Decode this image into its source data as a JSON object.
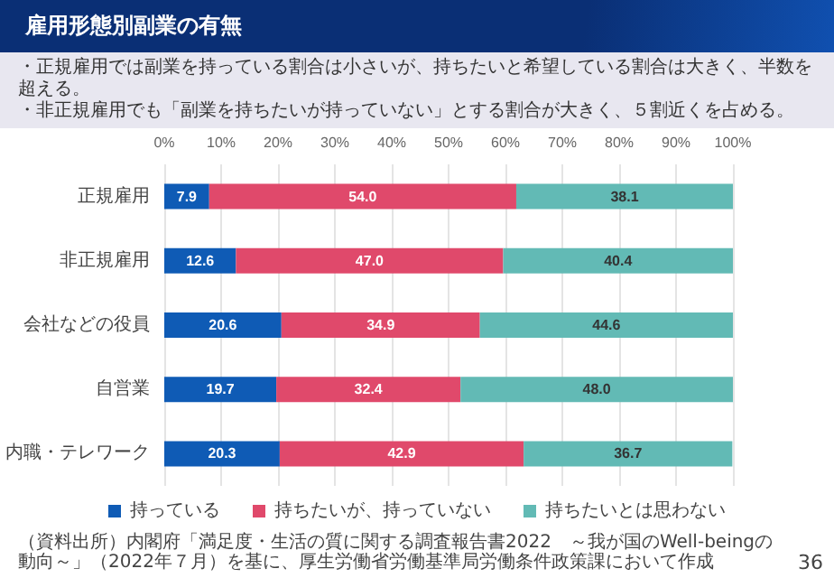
{
  "chart_data": {
    "type": "bar",
    "orientation": "horizontal",
    "stacked": true,
    "title": "雇用形態別副業の有無",
    "subtitle": "・正規雇用では副業を持っている割合は小さいが、持ちたいと希望している割合は大きく、半数を超える。",
    "categories": [
      "正規雇用",
      "非正規雇用",
      "会社などの役員",
      "自営業",
      "内職・テレワーク"
    ],
    "series": [
      {
        "name": "持っている",
        "color": "#0f5bb5",
        "values": [
          7.9,
          12.6,
          20.6,
          19.7,
          20.3
        ],
        "value_labels": [
          "7.9",
          "12.6",
          "20.6",
          "19.7",
          "20.3"
        ]
      },
      {
        "name": "持ちたいが、持っていない",
        "color": "#e0496b",
        "values": [
          54.0,
          47.0,
          34.9,
          32.4,
          42.9
        ],
        "value_labels": [
          "54.0",
          "47.0",
          "34.9",
          "32.4",
          "42.9"
        ]
      },
      {
        "name": "持ちたいとは思わない",
        "color": "#62bab5",
        "values": [
          38.1,
          40.4,
          44.6,
          48.0,
          36.7
        ],
        "value_labels": [
          "38.1",
          "40.4",
          "44.6",
          "48.0",
          "36.7"
        ]
      }
    ],
    "xlim": [
      0,
      100
    ],
    "xticks": [
      {
        "value": 0,
        "label": "0%"
      },
      {
        "value": 10,
        "label": "10%"
      },
      {
        "value": 20,
        "label": "20%"
      },
      {
        "value": 30,
        "label": "30%"
      },
      {
        "value": 40,
        "label": "40%"
      },
      {
        "value": 50,
        "label": "50%"
      },
      {
        "value": 60,
        "label": "60%"
      },
      {
        "value": 70,
        "label": "70%"
      },
      {
        "value": 80,
        "label": "80%"
      },
      {
        "value": 90,
        "label": "90%"
      },
      {
        "value": 100,
        "label": "100%"
      }
    ],
    "grid": "x",
    "legend": "bottom",
    "annotations": [
      "・非正規雇用でも「副業を持ちたいが持っていない」とする割合が大きく、５割近くを占める。",
      "（資料出所）内閣府「満足度・生活の質に関する調査報告書2022　～我が国のWell-beingの動向～」（2022年７月）を基に、厚生労働省労働基準局労働条件政策課において作成",
      "36"
    ]
  }
}
